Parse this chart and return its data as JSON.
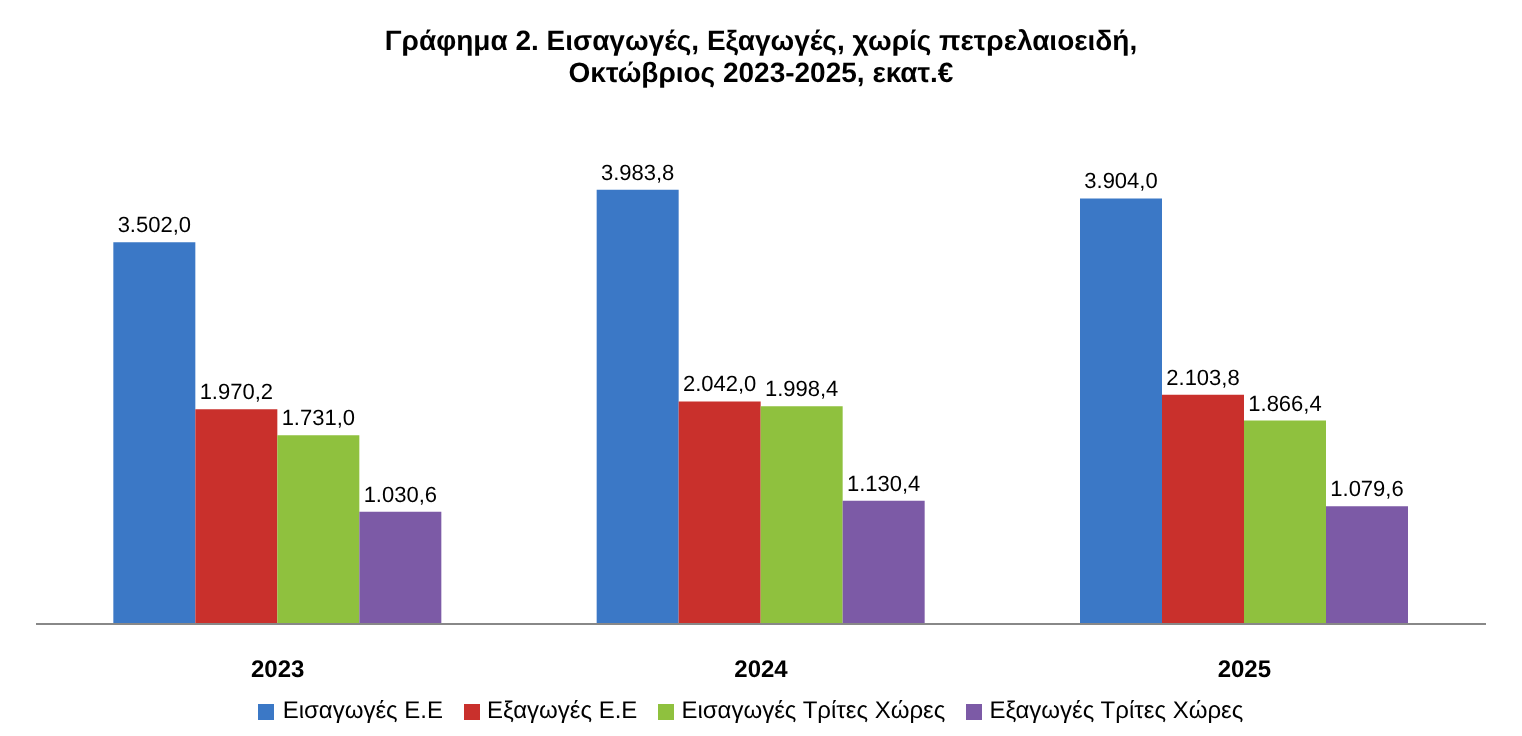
{
  "chart_data": {
    "type": "bar",
    "title": "Γράφημα 2. Εισαγωγές, Εξαγωγές, χωρίς πετρελαιοειδή,\nΟκτώβριος 2023-2025, εκατ.€",
    "categories": [
      "2023",
      "2024",
      "2025"
    ],
    "series": [
      {
        "name": "Εισαγωγές Ε.Ε",
        "color": "#3b78c6",
        "values": [
          3502.0,
          3983.8,
          3904.0
        ],
        "value_labels": [
          "3.502,0",
          "3.983,8",
          "3.904,0"
        ]
      },
      {
        "name": "Εξαγωγές  Ε.Ε",
        "color": "#c9302c",
        "values": [
          1970.2,
          2042.0,
          2103.8
        ],
        "value_labels": [
          "1.970,2",
          "2.042,0",
          "2.103,8"
        ]
      },
      {
        "name": "Εισαγωγές Τρίτες Χώρες",
        "color": "#8fc13e",
        "values": [
          1731.0,
          1998.4,
          1866.4
        ],
        "value_labels": [
          "1.731,0",
          "1.998,4",
          "1.866,4"
        ]
      },
      {
        "name": "Εξαγωγές Τρίτες Χώρες",
        "color": "#7c5aa6",
        "values": [
          1030.6,
          1130.4,
          1079.6
        ],
        "value_labels": [
          "1.030,6",
          "1.130,4",
          "1.079,6"
        ]
      }
    ],
    "legend": "bottom",
    "grid": false
  }
}
